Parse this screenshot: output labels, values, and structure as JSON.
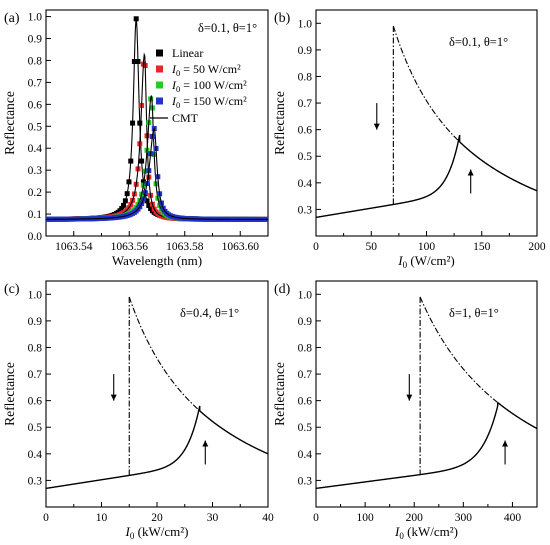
{
  "chart_data": [
    {
      "id": "a",
      "panel_label": "(a)",
      "type": "scatter",
      "annotation": "δ=0.1, θ=1°",
      "xlabel": "Wavelength (nm)",
      "ylabel": "Reflectance",
      "xlim": [
        1063.53,
        1063.61
      ],
      "ylim": [
        0.0,
        1.03
      ],
      "xticks": [
        1063.54,
        1063.56,
        1063.58,
        1063.6
      ],
      "xtick_labels": [
        "1063.54",
        "1063.56",
        "1063.58",
        "1063.60"
      ],
      "yticks": [
        0.0,
        0.1,
        0.2,
        0.3,
        0.4,
        0.5,
        0.6,
        0.7,
        0.8,
        0.9,
        1.0
      ],
      "ytick_labels": [
        "0.0",
        "0.1",
        "0.2",
        "0.3",
        "0.4",
        "0.5",
        "0.6",
        "0.7",
        "0.8",
        "0.9",
        "1.0"
      ],
      "legend_position": "top-right",
      "series": [
        {
          "name": "Linear",
          "label_main": "Linear",
          "label_sub": "",
          "label_tail": "",
          "color": "#000000",
          "marker": "square",
          "peak_x": 1063.5625,
          "peak_y": 0.99,
          "baseline": 0.075,
          "width": 0.0025
        },
        {
          "name": "I0 = 50 W/cm2",
          "label_main": "I",
          "label_sub": "0",
          "label_tail": "= 50 W/cm²",
          "color": "#e8262a",
          "marker": "square",
          "peak_x": 1063.5655,
          "peak_y": 0.83,
          "baseline": 0.075,
          "width": 0.0026
        },
        {
          "name": "I0 = 100 W/cm2",
          "label_main": "I",
          "label_sub": "0",
          "label_tail": "= 100 W/cm²",
          "color": "#22cc22",
          "marker": "square",
          "peak_x": 1063.568,
          "peak_y": 0.64,
          "baseline": 0.075,
          "width": 0.003
        },
        {
          "name": "I0 = 150 W/cm2",
          "label_main": "I",
          "label_sub": "0",
          "label_tail": "= 150 W/cm²",
          "color": "#2233cc",
          "marker": "square",
          "peak_x": 1063.569,
          "peak_y": 0.49,
          "baseline": 0.075,
          "width": 0.0035
        }
      ],
      "line_legend": "CMT"
    },
    {
      "id": "b",
      "panel_label": "(b)",
      "type": "line",
      "annotation": "δ=0.1, θ=1°",
      "xlabel_main": "I",
      "xlabel_sub": "0",
      "xlabel_tail": " (W/cm²)",
      "ylabel": "Reflectance",
      "xlim": [
        0,
        200
      ],
      "ylim": [
        0.2,
        1.05
      ],
      "xticks": [
        0,
        50,
        100,
        150,
        200
      ],
      "xtick_labels": [
        "0",
        "50",
        "100",
        "150",
        "200"
      ],
      "yticks": [
        0.3,
        0.4,
        0.5,
        0.6,
        0.7,
        0.8,
        0.9,
        1.0
      ],
      "ytick_labels": [
        "0.3",
        "0.4",
        "0.5",
        "0.6",
        "0.7",
        "0.8",
        "0.9",
        "1.0"
      ],
      "r0": 0.27,
      "switch_up": 130,
      "r_jump": 0.56,
      "switch_down": 70,
      "r_peak": 0.99,
      "r_end": 0.37,
      "arrow_down_x": 55,
      "arrow_up_x": 140
    },
    {
      "id": "c",
      "panel_label": "(c)",
      "type": "line",
      "annotation": "δ=0.4, θ=1°",
      "xlabel_main": "I",
      "xlabel_sub": "0",
      "xlabel_tail": " (kW/cm²)",
      "ylabel": "Reflectance",
      "xlim": [
        0,
        40
      ],
      "ylim": [
        0.2,
        1.05
      ],
      "xticks": [
        0,
        10,
        20,
        30,
        40
      ],
      "xtick_labels": [
        "0",
        "10",
        "20",
        "30",
        "40"
      ],
      "yticks": [
        0.3,
        0.4,
        0.5,
        0.6,
        0.7,
        0.8,
        0.9,
        1.0
      ],
      "ytick_labels": [
        "0.3",
        "0.4",
        "0.5",
        "0.6",
        "0.7",
        "0.8",
        "0.9",
        "1.0"
      ],
      "r0": 0.27,
      "switch_up": 27.7,
      "r_jump": 0.56,
      "switch_down": 15,
      "r_peak": 0.99,
      "r_end": 0.4,
      "arrow_down_x": 12.2,
      "arrow_up_x": 28.7
    },
    {
      "id": "d",
      "panel_label": "(d)",
      "type": "line",
      "annotation": "δ=1, θ=1°",
      "xlabel_main": "I",
      "xlabel_sub": "0",
      "xlabel_tail": " (kW/cm²)",
      "ylabel": "Reflectance",
      "xlim": [
        0,
        450
      ],
      "ylim": [
        0.2,
        1.05
      ],
      "xticks": [
        0,
        100,
        200,
        300,
        400
      ],
      "xtick_labels": [
        "0",
        "100",
        "200",
        "300",
        "400"
      ],
      "yticks": [
        0.3,
        0.4,
        0.5,
        0.6,
        0.7,
        0.8,
        0.9,
        1.0
      ],
      "ytick_labels": [
        "0.3",
        "0.4",
        "0.5",
        "0.6",
        "0.7",
        "0.8",
        "0.9",
        "1.0"
      ],
      "r0": 0.27,
      "switch_up": 370,
      "r_jump": 0.6,
      "switch_down": 212,
      "r_peak": 0.99,
      "r_end": 0.495,
      "arrow_down_x": 190,
      "arrow_up_x": 385
    }
  ]
}
